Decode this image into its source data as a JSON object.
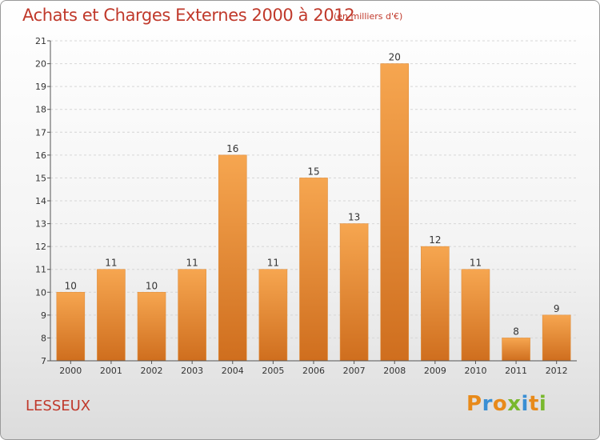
{
  "header": {
    "title": "Achats et Charges Externes 2000 à 2012",
    "subtitle": "(en milliers d'€)"
  },
  "footer": {
    "commune": "LESSEUX",
    "logo": [
      "P",
      "r",
      "o",
      "x",
      "i",
      "t",
      "i"
    ]
  },
  "colors": {
    "title": "#c0392b",
    "bar_light": "#f6a650",
    "bar_dark": "#cf6e1e",
    "logo": [
      "#e88a1a",
      "#3a8fd4",
      "#e88a1a",
      "#79b82e",
      "#3a8fd4",
      "#e88a1a",
      "#79b82e"
    ]
  },
  "chart_data": {
    "type": "bar",
    "title": "Achats et Charges Externes 2000 à 2012",
    "subtitle": "(en milliers d'€)",
    "categories": [
      "2000",
      "2001",
      "2002",
      "2003",
      "2004",
      "2005",
      "2006",
      "2007",
      "2008",
      "2009",
      "2010",
      "2011",
      "2012"
    ],
    "values": [
      10,
      11,
      10,
      11,
      16,
      11,
      15,
      13,
      20,
      12,
      11,
      8,
      9
    ],
    "ylim": [
      7,
      21
    ],
    "yticks": [
      7,
      8,
      9,
      10,
      11,
      12,
      13,
      14,
      15,
      16,
      17,
      18,
      19,
      20,
      21
    ],
    "xlabel": "",
    "ylabel": "",
    "grid": true,
    "data_labels": true
  }
}
